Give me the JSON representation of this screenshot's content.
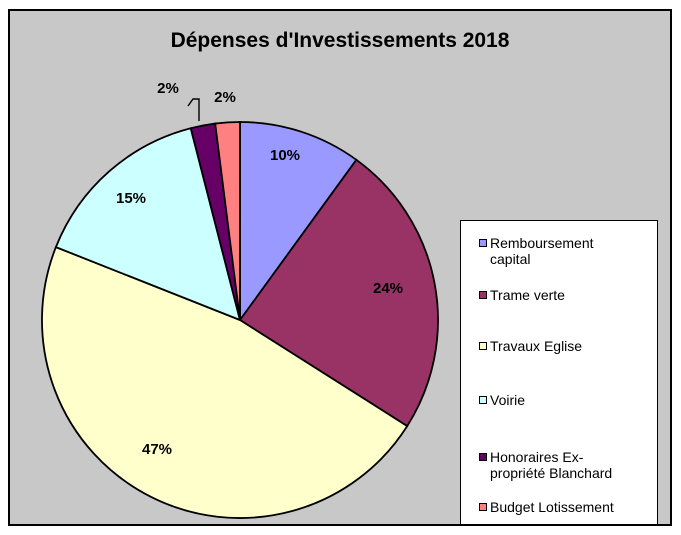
{
  "chart_data": {
    "type": "pie",
    "title": "Dépenses d'Investissements 2018",
    "labels": [
      "Remboursement capital",
      "Trame verte",
      "Travaux Eglise",
      "Voirie",
      "Honoraires Ex-propriété Blanchard",
      "Budget Lotissement"
    ],
    "values": [
      10,
      24,
      47,
      15,
      2,
      2
    ],
    "value_labels": [
      "10%",
      "24%",
      "47%",
      "15%",
      "2%",
      "2%"
    ],
    "colors": [
      "#9999ff",
      "#993366",
      "#ffffcc",
      "#ccffff",
      "#660066",
      "#ff8080"
    ],
    "start_angle_deg": 0,
    "direction": "clockwise",
    "legend_position": "right"
  },
  "legend_lines": [
    [
      "Remboursement",
      "capital"
    ],
    [
      "Trame verte"
    ],
    [
      "Travaux Eglise"
    ],
    [
      "Voirie"
    ],
    [
      "Honoraires Ex-",
      "propriété Blanchard"
    ],
    [
      "Budget Lotissement"
    ]
  ]
}
